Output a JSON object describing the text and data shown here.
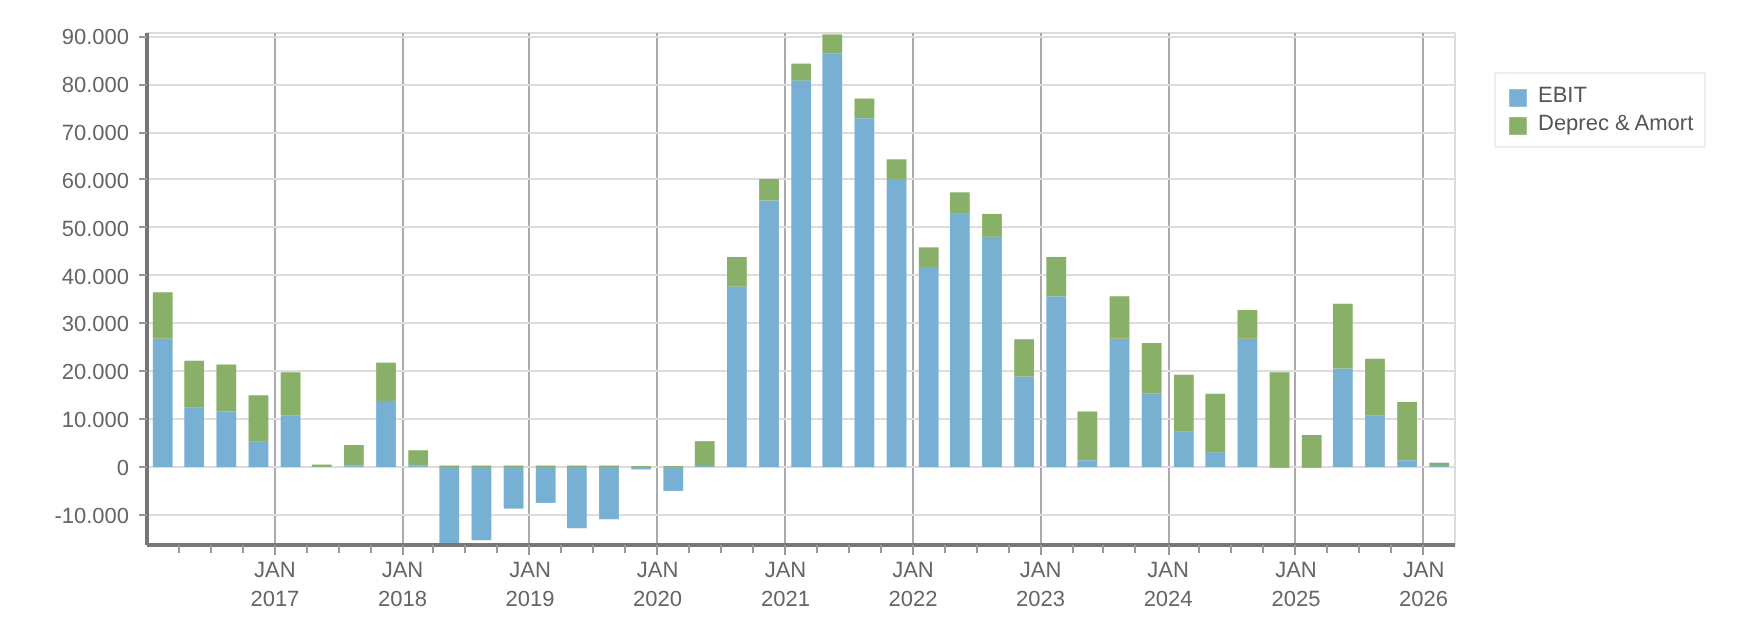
{
  "chart_data": {
    "type": "bar",
    "stacked": true,
    "x": [
      "2016-02-15",
      "2016-05-15",
      "2016-08-15",
      "2016-11-15",
      "2017-02-15",
      "2017-05-15",
      "2017-08-15",
      "2017-11-15",
      "2018-02-15",
      "2018-05-15",
      "2018-08-15",
      "2018-11-15",
      "2019-02-15",
      "2019-05-15",
      "2019-08-15",
      "2019-11-15",
      "2020-02-15",
      "2020-05-15",
      "2020-08-15",
      "2020-11-15",
      "2021-02-15",
      "2021-05-15",
      "2021-08-15",
      "2021-11-15",
      "2022-02-15",
      "2022-05-15",
      "2022-08-15",
      "2022-11-15",
      "2023-02-15",
      "2023-05-15",
      "2023-08-15",
      "2023-11-15",
      "2024-02-15",
      "2024-05-15",
      "2024-08-15",
      "2024-11-15",
      "2025-02-15",
      "2025-05-15",
      "2025-08-15",
      "2025-11-15",
      "2026-02-15"
    ],
    "series": [
      {
        "name": "EBIT",
        "color": "#78b0d3",
        "values": [
          26800,
          12400,
          11600,
          5400,
          10800,
          0,
          300,
          13800,
          300,
          -16300,
          -15300,
          -8700,
          -7500,
          -12800,
          -10900,
          -500,
          -5000,
          200,
          37700,
          55700,
          80800,
          86400,
          72900,
          60200,
          41600,
          52900,
          48100,
          18900,
          35700,
          1400,
          26800,
          15400,
          7500,
          3100,
          26800,
          -200,
          -200,
          20600,
          10800,
          1400,
          200
        ]
      },
      {
        "name": "Deprec & Amort",
        "color": "#88b068",
        "values": [
          9700,
          9800,
          9800,
          9600,
          9000,
          500,
          4300,
          8000,
          3200,
          300,
          300,
          300,
          300,
          300,
          300,
          200,
          200,
          5200,
          6200,
          4500,
          3500,
          4000,
          4100,
          4100,
          4300,
          4500,
          4800,
          7800,
          8200,
          10200,
          8900,
          10500,
          11800,
          12200,
          6000,
          19800,
          6700,
          13500,
          11800,
          12200,
          700
        ]
      }
    ],
    "xlim": [
      "2016-01-01",
      "2026-04-01"
    ],
    "xticks": [
      {
        "value": "2016-04-01",
        "label": null
      },
      {
        "value": "2016-07-01",
        "label": null
      },
      {
        "value": "2016-10-01",
        "label": null
      },
      {
        "value": "2017-01-01",
        "label": "JAN\n2017"
      },
      {
        "value": "2017-04-01",
        "label": null
      },
      {
        "value": "2017-07-01",
        "label": null
      },
      {
        "value": "2017-10-01",
        "label": null
      },
      {
        "value": "2018-01-01",
        "label": "JAN\n2018"
      },
      {
        "value": "2018-04-01",
        "label": null
      },
      {
        "value": "2018-07-01",
        "label": null
      },
      {
        "value": "2018-10-01",
        "label": null
      },
      {
        "value": "2019-01-01",
        "label": "JAN\n2019"
      },
      {
        "value": "2019-04-01",
        "label": null
      },
      {
        "value": "2019-07-01",
        "label": null
      },
      {
        "value": "2019-10-01",
        "label": null
      },
      {
        "value": "2020-01-01",
        "label": "JAN\n2020"
      },
      {
        "value": "2020-04-01",
        "label": null
      },
      {
        "value": "2020-07-01",
        "label": null
      },
      {
        "value": "2020-10-01",
        "label": null
      },
      {
        "value": "2021-01-01",
        "label": "JAN\n2021"
      },
      {
        "value": "2021-04-01",
        "label": null
      },
      {
        "value": "2021-07-01",
        "label": null
      },
      {
        "value": "2021-10-01",
        "label": null
      },
      {
        "value": "2022-01-01",
        "label": "JAN\n2022"
      },
      {
        "value": "2022-04-01",
        "label": null
      },
      {
        "value": "2022-07-01",
        "label": null
      },
      {
        "value": "2022-10-01",
        "label": null
      },
      {
        "value": "2023-01-01",
        "label": "JAN\n2023"
      },
      {
        "value": "2023-04-01",
        "label": null
      },
      {
        "value": "2023-07-01",
        "label": null
      },
      {
        "value": "2023-10-01",
        "label": null
      },
      {
        "value": "2024-01-01",
        "label": "JAN\n2024"
      },
      {
        "value": "2024-04-01",
        "label": null
      },
      {
        "value": "2024-07-01",
        "label": null
      },
      {
        "value": "2024-10-01",
        "label": null
      },
      {
        "value": "2025-01-01",
        "label": "JAN\n2025"
      },
      {
        "value": "2025-04-01",
        "label": null
      },
      {
        "value": "2025-07-01",
        "label": null
      },
      {
        "value": "2025-10-01",
        "label": null
      },
      {
        "value": "2026-01-01",
        "label": "JAN\n2026"
      }
    ],
    "ylim": [
      -16300,
      90700
    ],
    "yticks": [
      {
        "value": -10000,
        "label": "-10.000"
      },
      0,
      {
        "value": 10000,
        "label": "10.000"
      },
      {
        "value": 20000,
        "label": "20.000"
      },
      {
        "value": 30000,
        "label": "30.000"
      },
      {
        "value": 40000,
        "label": "40.000"
      },
      {
        "value": 50000,
        "label": "50.000"
      },
      {
        "value": 60000,
        "label": "60.000"
      },
      {
        "value": 70000,
        "label": "70.000"
      },
      {
        "value": 80000,
        "label": "80.000"
      },
      {
        "value": 90000,
        "label": "90.000"
      }
    ],
    "grid": true,
    "legend": "top right"
  }
}
